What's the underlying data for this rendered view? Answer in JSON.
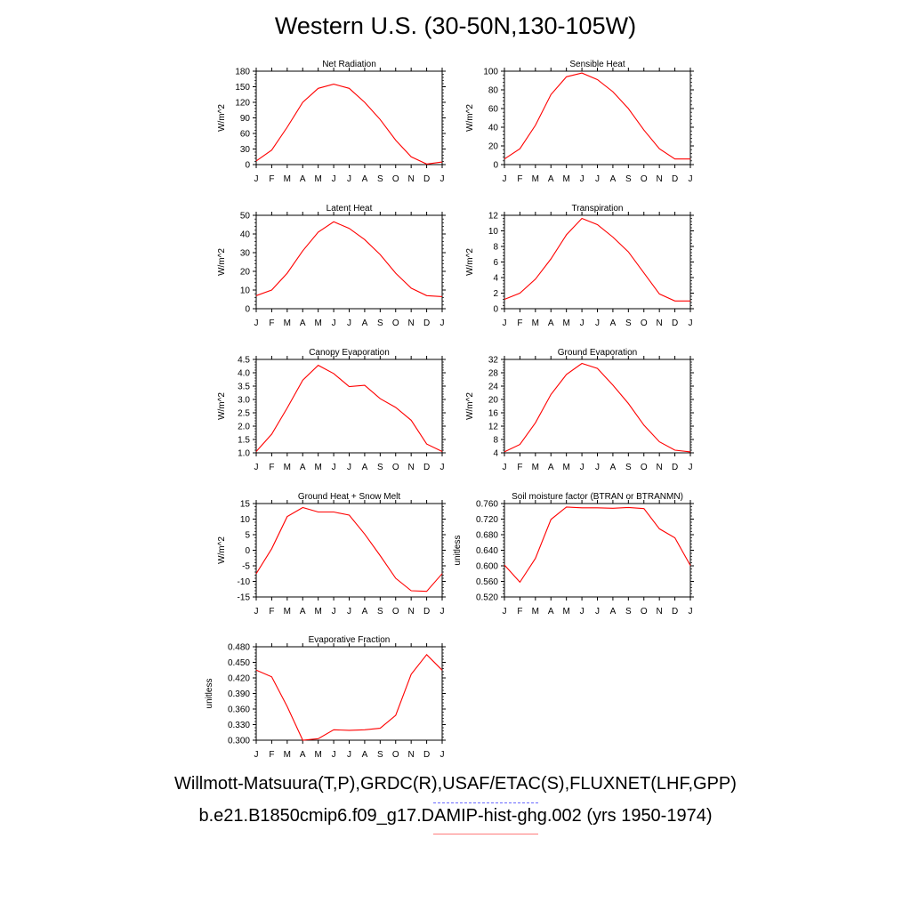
{
  "title": "Western U.S. (30-50N,130-105W)",
  "footer": {
    "observations": "Willmott-Matsuura(T,P),GRDC(R),USAF/ETAC(S),FLUXNET(LHF,GPP)",
    "case": "b.e21.B1850cmip6.f09_g17.DAMIP-hist-ghg.002 (yrs 1950-1974)"
  },
  "colors": {
    "series": "#ff0000",
    "obs_legend": "#6b6bff",
    "case_legend": "#ff7b7b"
  },
  "chart_data": [
    {
      "type": "line",
      "title": "Net Radiation",
      "ylabel": "W/m^2",
      "x": [
        "J",
        "F",
        "M",
        "A",
        "M",
        "J",
        "J",
        "A",
        "S",
        "O",
        "N",
        "D",
        "J"
      ],
      "ylim": [
        0,
        180
      ],
      "yticks": [
        "0",
        "30",
        "60",
        "90",
        "120",
        "150",
        "180"
      ],
      "series": [
        {
          "values": [
            7,
            28,
            72,
            120,
            147,
            155,
            147,
            120,
            87,
            47,
            15,
            1,
            5
          ]
        }
      ]
    },
    {
      "type": "line",
      "title": "Sensible Heat",
      "ylabel": "W/m^2",
      "x": [
        "J",
        "F",
        "M",
        "A",
        "M",
        "J",
        "J",
        "A",
        "S",
        "O",
        "N",
        "D",
        "J"
      ],
      "ylim": [
        0,
        100
      ],
      "yticks": [
        "0",
        "20",
        "40",
        "60",
        "80",
        "100"
      ],
      "series": [
        {
          "values": [
            6,
            17,
            42,
            75,
            94,
            98,
            91,
            78,
            60,
            37,
            17,
            6,
            6
          ]
        }
      ]
    },
    {
      "type": "line",
      "title": "Latent Heat",
      "ylabel": "W/m^2",
      "x": [
        "J",
        "F",
        "M",
        "A",
        "M",
        "J",
        "J",
        "A",
        "S",
        "O",
        "N",
        "D",
        "J"
      ],
      "ylim": [
        0,
        50
      ],
      "yticks": [
        "0",
        "10",
        "20",
        "30",
        "40",
        "50"
      ],
      "series": [
        {
          "values": [
            7,
            10,
            19,
            31,
            41,
            46.5,
            43,
            37,
            29,
            19,
            11,
            7,
            6.5
          ]
        }
      ]
    },
    {
      "type": "line",
      "title": "Transpiration",
      "ylabel": "W/m^2",
      "x": [
        "J",
        "F",
        "M",
        "A",
        "M",
        "J",
        "J",
        "A",
        "S",
        "O",
        "N",
        "D",
        "J"
      ],
      "ylim": [
        0,
        12
      ],
      "yticks": [
        "0",
        "2",
        "4",
        "6",
        "8",
        "10",
        "12"
      ],
      "series": [
        {
          "values": [
            1.2,
            2.0,
            3.8,
            6.4,
            9.5,
            11.6,
            10.8,
            9.2,
            7.3,
            4.6,
            1.9,
            1.0,
            1.0
          ]
        }
      ]
    },
    {
      "type": "line",
      "title": "Canopy Evaporation",
      "ylabel": "W/m^2",
      "x": [
        "J",
        "F",
        "M",
        "A",
        "M",
        "J",
        "J",
        "A",
        "S",
        "O",
        "N",
        "D",
        "J"
      ],
      "ylim": [
        1.0,
        4.5
      ],
      "yticks": [
        "1.0",
        "1.5",
        "2.0",
        "2.5",
        "3.0",
        "3.5",
        "4.0",
        "4.5"
      ],
      "series": [
        {
          "values": [
            1.05,
            1.7,
            2.68,
            3.72,
            4.28,
            3.97,
            3.48,
            3.53,
            3.03,
            2.7,
            2.22,
            1.33,
            1.05
          ]
        }
      ]
    },
    {
      "type": "line",
      "title": "Ground Evaporation",
      "ylabel": "W/m^2",
      "x": [
        "J",
        "F",
        "M",
        "A",
        "M",
        "J",
        "J",
        "A",
        "S",
        "O",
        "N",
        "D",
        "J"
      ],
      "ylim": [
        4,
        32
      ],
      "yticks": [
        "4",
        "8",
        "12",
        "16",
        "20",
        "24",
        "28",
        "32"
      ],
      "series": [
        {
          "values": [
            4.3,
            6.5,
            13,
            21.5,
            27.5,
            30.8,
            29.3,
            24.3,
            18.8,
            12.3,
            7.3,
            4.8,
            4.3
          ]
        }
      ]
    },
    {
      "type": "line",
      "title": "Ground Heat + Snow Melt",
      "ylabel": "W/m^2",
      "x": [
        "J",
        "F",
        "M",
        "A",
        "M",
        "J",
        "J",
        "A",
        "S",
        "O",
        "N",
        "D",
        "J"
      ],
      "ylim": [
        -15,
        15
      ],
      "yticks": [
        "-15",
        "-10",
        "-5",
        "0",
        "5",
        "10",
        "15"
      ],
      "series": [
        {
          "values": [
            -7.5,
            0.5,
            10.8,
            13.7,
            12.3,
            12.3,
            11.3,
            5.2,
            -1.7,
            -9,
            -13,
            -13.2,
            -7.5
          ]
        }
      ]
    },
    {
      "type": "line",
      "title": "Soil moisture factor (BTRAN or BTRANMN)",
      "ylabel": "unitless",
      "x": [
        "J",
        "F",
        "M",
        "A",
        "M",
        "J",
        "J",
        "A",
        "S",
        "O",
        "N",
        "D",
        "J"
      ],
      "ylim": [
        0.52,
        0.76
      ],
      "yticks": [
        "0.520",
        "0.560",
        "0.600",
        "0.640",
        "0.680",
        "0.720",
        "0.760"
      ],
      "series": [
        {
          "values": [
            0.602,
            0.558,
            0.619,
            0.719,
            0.751,
            0.749,
            0.749,
            0.748,
            0.75,
            0.747,
            0.695,
            0.672,
            0.601
          ]
        }
      ]
    },
    {
      "type": "line",
      "title": "Evaporative Fraction",
      "ylabel": "unitless",
      "x": [
        "J",
        "F",
        "M",
        "A",
        "M",
        "J",
        "J",
        "A",
        "S",
        "O",
        "N",
        "D",
        "J"
      ],
      "ylim": [
        0.3,
        0.48
      ],
      "yticks": [
        "0.300",
        "0.330",
        "0.360",
        "0.390",
        "0.420",
        "0.450",
        "0.480"
      ],
      "series": [
        {
          "values": [
            0.435,
            0.422,
            0.365,
            0.3,
            0.303,
            0.32,
            0.319,
            0.32,
            0.323,
            0.348,
            0.427,
            0.465,
            0.435
          ]
        }
      ]
    }
  ]
}
